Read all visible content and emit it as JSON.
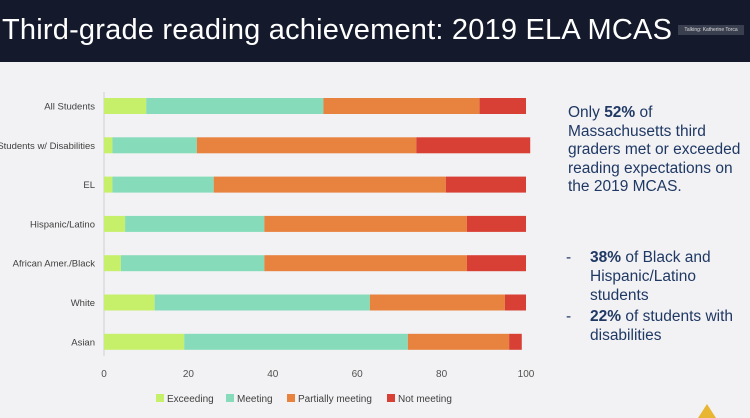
{
  "header": {
    "title": "Third-grade reading achievement: 2019 ELA MCAS",
    "talking_indicator": "Talking: Katherine Torca"
  },
  "summary": {
    "part1": "Only ",
    "highlight": "52%",
    "part2": " of Massachusetts third graders met or exceeded reading expectations on the 2019 MCAS.",
    "bullets": [
      {
        "dash": "-",
        "pct": "38%",
        "text": " of Black and Hispanic/Latino students"
      },
      {
        "dash": "-",
        "pct": "22%",
        "text": " of students with disabilities"
      }
    ]
  },
  "chart_data": {
    "type": "bar",
    "orientation": "horizontal",
    "stacked": true,
    "categories": [
      "All Students",
      "Students w/ Disabilities",
      "EL",
      "Hispanic/Latino",
      "African Amer./Black",
      "White",
      "Asian"
    ],
    "series": [
      {
        "name": "Exceeding",
        "color": "#c6f06a",
        "values": [
          10,
          2,
          2,
          5,
          4,
          12,
          19
        ]
      },
      {
        "name": "Meeting",
        "color": "#86dcba",
        "values": [
          42,
          20,
          24,
          33,
          34,
          51,
          53
        ]
      },
      {
        "name": "Partially meeting",
        "color": "#e8823f",
        "values": [
          37,
          52,
          55,
          48,
          48,
          32,
          24
        ]
      },
      {
        "name": "Not meeting",
        "color": "#d84036",
        "values": [
          11,
          27,
          19,
          14,
          14,
          5,
          3
        ]
      }
    ],
    "xlim": [
      0,
      100
    ],
    "xticks": [
      0,
      20,
      40,
      60,
      80,
      100
    ],
    "grid": false,
    "legend_position": "bottom",
    "title": "",
    "xlabel": "",
    "ylabel": ""
  },
  "icons": {
    "warning": "warning-triangle-icon"
  }
}
